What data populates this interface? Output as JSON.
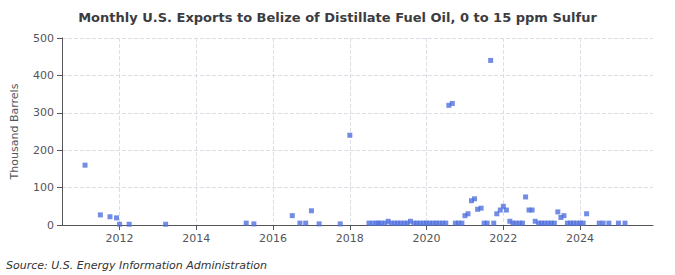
{
  "chart_data": {
    "type": "scatter",
    "title": "Monthly U.S. Exports to Belize of Distillate Fuel Oil, 0 to 15 ppm Sulfur",
    "ylabel": "Thousand Barrels",
    "annotations": [
      "Source: U.S. Energy Information Administration"
    ],
    "marker": "square",
    "grid": true,
    "xlim": [
      2010.5,
      2025.9
    ],
    "xticks": [
      2012,
      2014,
      2016,
      2018,
      2020,
      2022,
      2024
    ],
    "ylim": [
      0,
      500
    ],
    "yticks": [
      0,
      100,
      200,
      300,
      400,
      500
    ],
    "x": [
      2011.1,
      2011.5,
      2011.75,
      2011.92,
      2012.0,
      2012.25,
      2013.2,
      2015.3,
      2015.5,
      2016.5,
      2016.7,
      2016.85,
      2017.0,
      2017.2,
      2017.75,
      2018.0,
      2018.5,
      2018.6,
      2018.7,
      2018.75,
      2018.83,
      2018.92,
      2019.0,
      2019.08,
      2019.17,
      2019.25,
      2019.33,
      2019.42,
      2019.5,
      2019.58,
      2019.67,
      2019.75,
      2019.83,
      2019.92,
      2020.0,
      2020.08,
      2020.17,
      2020.25,
      2020.33,
      2020.42,
      2020.5,
      2020.58,
      2020.67,
      2020.75,
      2020.83,
      2020.92,
      2021.0,
      2021.08,
      2021.17,
      2021.25,
      2021.33,
      2021.42,
      2021.5,
      2021.58,
      2021.67,
      2021.75,
      2021.83,
      2021.92,
      2022.0,
      2022.08,
      2022.17,
      2022.25,
      2022.33,
      2022.42,
      2022.5,
      2022.58,
      2022.67,
      2022.75,
      2022.83,
      2022.92,
      2023.0,
      2023.08,
      2023.17,
      2023.25,
      2023.33,
      2023.42,
      2023.5,
      2023.58,
      2023.67,
      2023.75,
      2023.83,
      2023.92,
      2024.0,
      2024.08,
      2024.17,
      2024.5,
      2024.6,
      2024.75,
      2025.0,
      2025.17
    ],
    "values": [
      160,
      27,
      22,
      19,
      2,
      2,
      2,
      5,
      3,
      25,
      5,
      5,
      38,
      3,
      3,
      240,
      5,
      5,
      5,
      5,
      5,
      5,
      10,
      5,
      5,
      5,
      5,
      5,
      5,
      10,
      5,
      5,
      5,
      5,
      5,
      5,
      5,
      5,
      5,
      5,
      5,
      320,
      325,
      5,
      5,
      5,
      25,
      30,
      65,
      70,
      42,
      45,
      5,
      5,
      440,
      5,
      30,
      40,
      50,
      40,
      10,
      5,
      5,
      5,
      5,
      75,
      40,
      40,
      10,
      5,
      5,
      5,
      5,
      5,
      5,
      35,
      20,
      25,
      5,
      5,
      5,
      5,
      5,
      5,
      30,
      5,
      5,
      5,
      5,
      5
    ]
  }
}
